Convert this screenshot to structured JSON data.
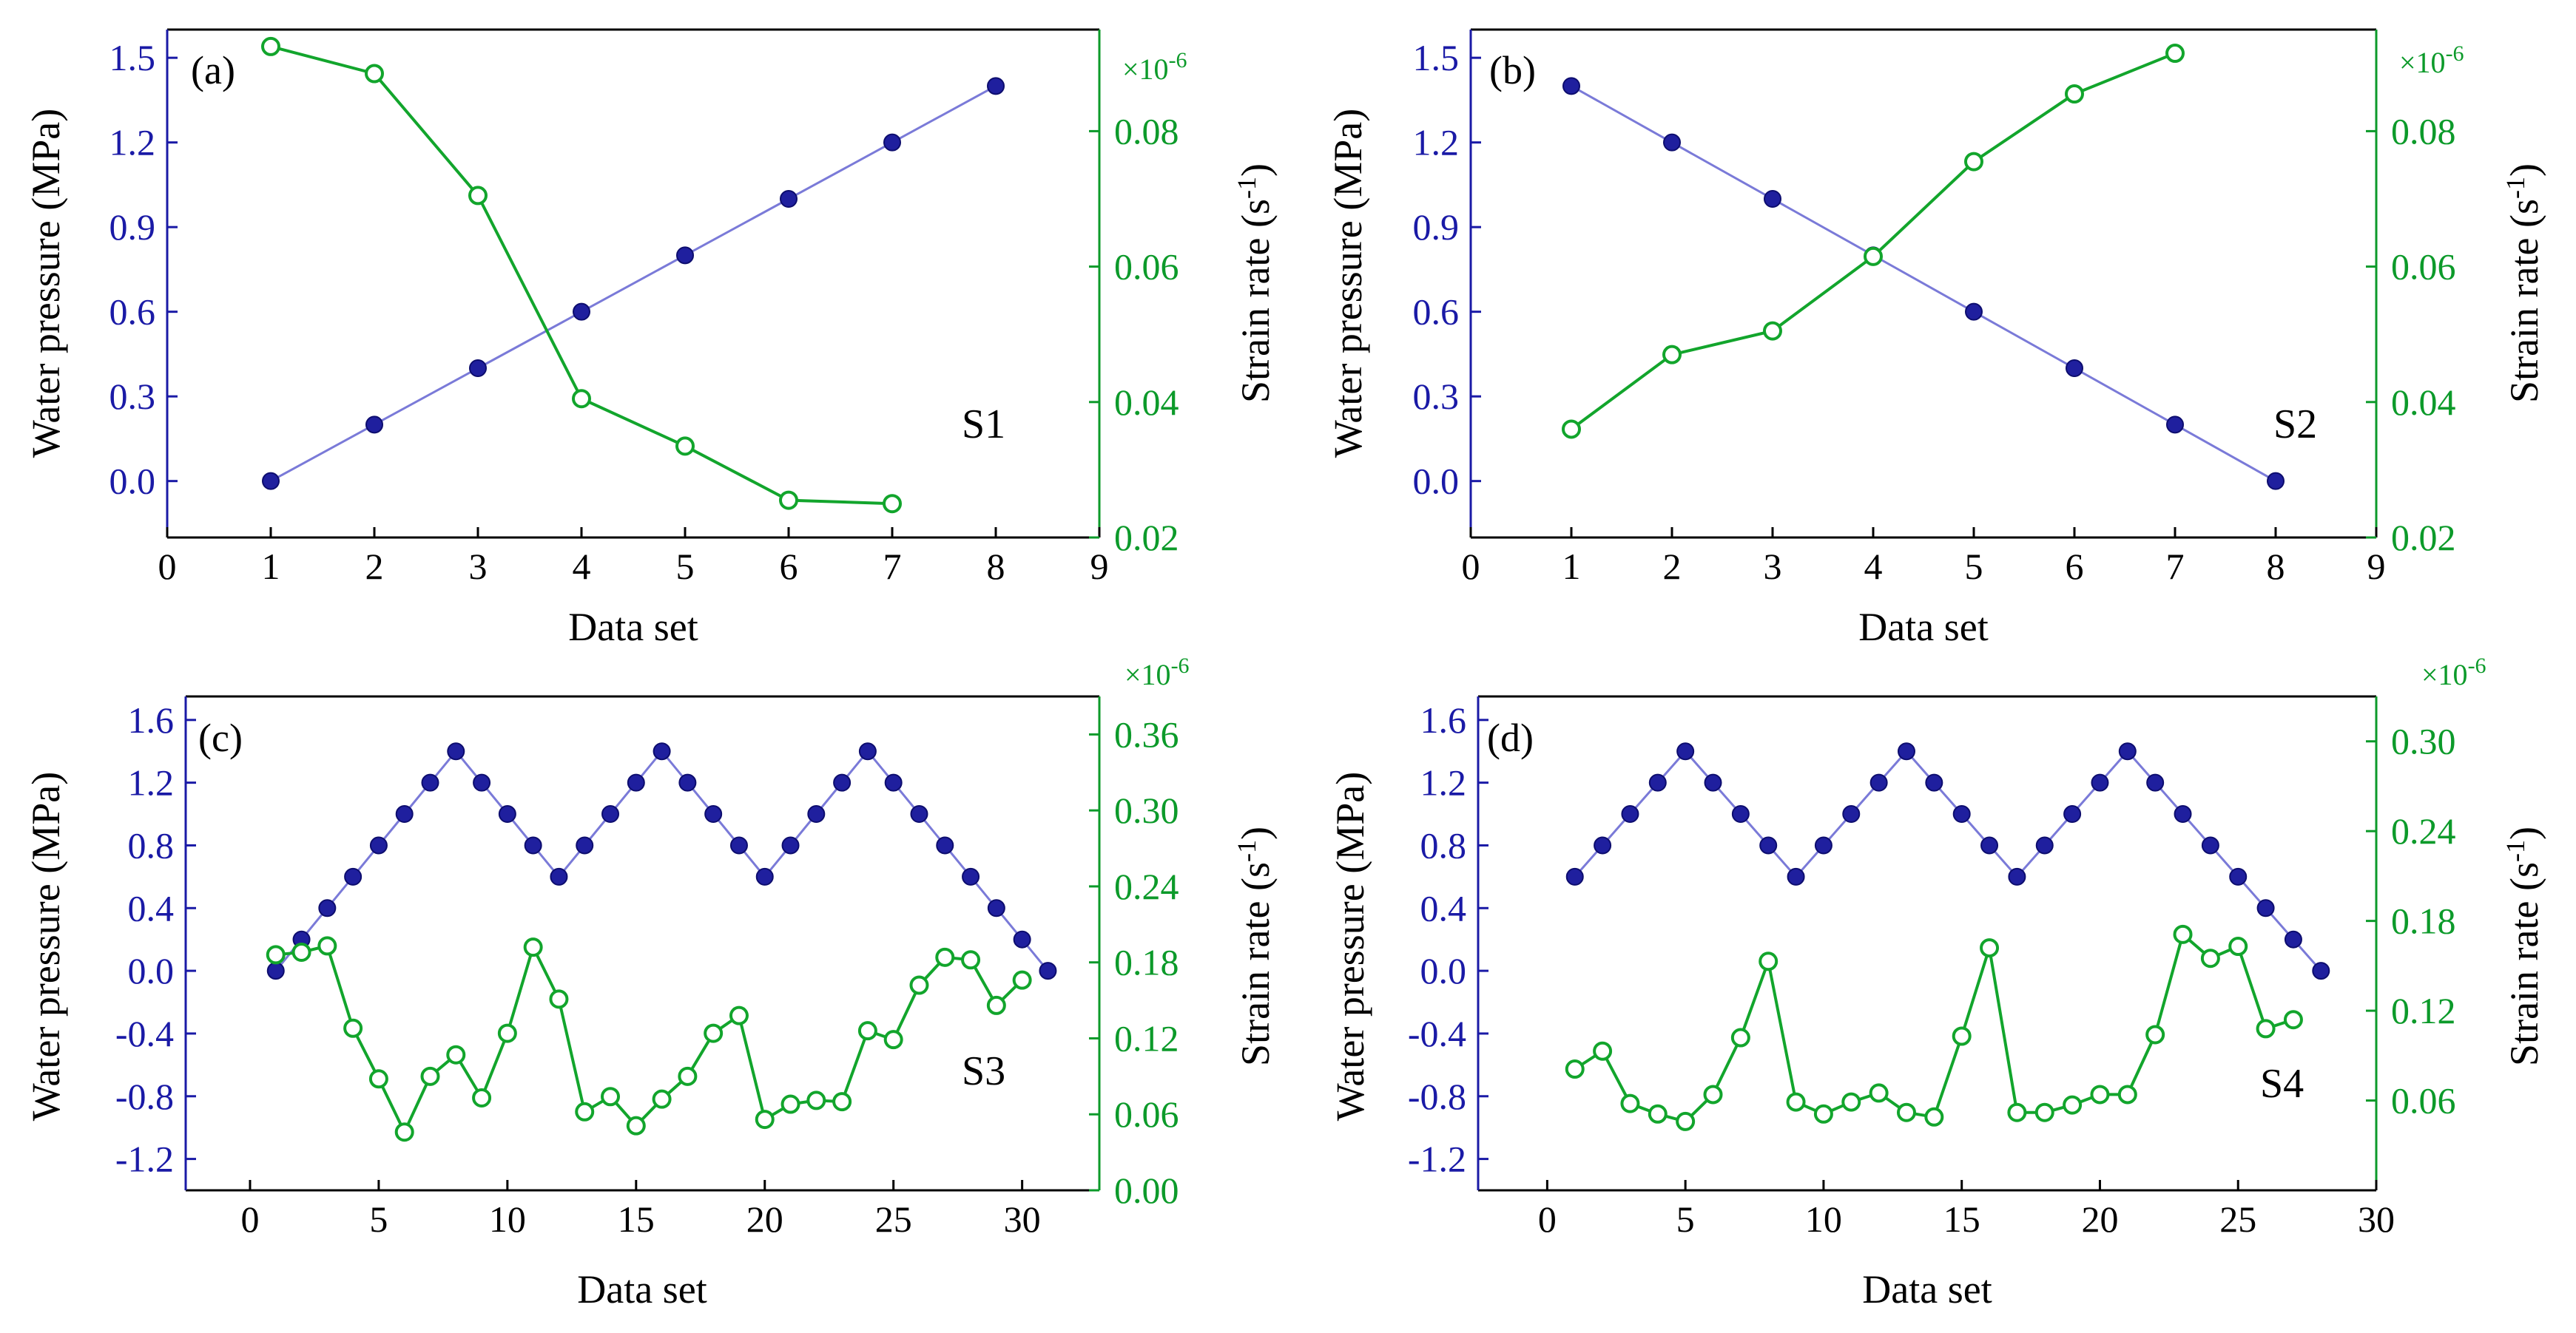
{
  "colors": {
    "left_axis": "#1a1aa6",
    "left_marker": "#1f1f9e",
    "left_line": "#7a7ad8",
    "right_axis": "#0c9a2a",
    "right_line": "#12a52c",
    "frame": "#000000"
  },
  "chart_data": [
    {
      "type": "line",
      "panel_label": "(a)",
      "annotation": "S1",
      "xlabel": "Data set",
      "ylabel_left": "Water pressure (MPa)",
      "ylabel_right_text": "Strain rate (s",
      "ylabel_right_exp": "-1",
      "ylabel_right_close": ")",
      "right_multiplier_text": "×10",
      "right_multiplier_exp": "-6",
      "xlim": [
        0,
        9
      ],
      "xticks": [
        0,
        1,
        2,
        3,
        4,
        5,
        6,
        7,
        8,
        9
      ],
      "xtick_labels": [
        "0",
        "1",
        "2",
        "3",
        "4",
        "5",
        "6",
        "7",
        "8",
        "9"
      ],
      "ylim_left": [
        -0.2,
        1.6
      ],
      "yticks_left": [
        0.0,
        0.3,
        0.6,
        0.9,
        1.2,
        1.5
      ],
      "ytick_labels_left": [
        "0.0",
        "0.3",
        "0.6",
        "0.9",
        "1.2",
        "1.5"
      ],
      "ylim_right": [
        0.02,
        0.095
      ],
      "yticks_right": [
        0.02,
        0.04,
        0.06,
        0.08
      ],
      "ytick_labels_right": [
        "0.02",
        "0.04",
        "0.06",
        "0.08"
      ],
      "series": [
        {
          "name": "Water pressure",
          "axis": "left",
          "marker": "filled",
          "x": [
            1,
            2,
            3,
            4,
            5,
            6,
            7,
            8
          ],
          "y": [
            0.0,
            0.2,
            0.4,
            0.6,
            0.8,
            1.0,
            1.2,
            1.4
          ]
        },
        {
          "name": "Strain rate",
          "axis": "right",
          "marker": "open",
          "x": [
            1,
            2,
            3,
            4,
            5,
            6,
            7
          ],
          "y": [
            0.0925,
            0.0885,
            0.0705,
            0.0405,
            0.0335,
            0.0255,
            0.025
          ]
        }
      ]
    },
    {
      "type": "line",
      "panel_label": "(b)",
      "annotation": "S2",
      "xlabel": "Data set",
      "ylabel_left": "Water pressure (MPa)",
      "ylabel_right_text": "Strain rate (s",
      "ylabel_right_exp": "-1",
      "ylabel_right_close": ")",
      "right_multiplier_text": "×10",
      "right_multiplier_exp": "-6",
      "xlim": [
        0,
        9
      ],
      "xticks": [
        0,
        1,
        2,
        3,
        4,
        5,
        6,
        7,
        8,
        9
      ],
      "xtick_labels": [
        "0",
        "1",
        "2",
        "3",
        "4",
        "5",
        "6",
        "7",
        "8",
        "9"
      ],
      "ylim_left": [
        -0.2,
        1.6
      ],
      "yticks_left": [
        0.0,
        0.3,
        0.6,
        0.9,
        1.2,
        1.5
      ],
      "ytick_labels_left": [
        "0.0",
        "0.3",
        "0.6",
        "0.9",
        "1.2",
        "1.5"
      ],
      "ylim_right": [
        0.02,
        0.095
      ],
      "yticks_right": [
        0.02,
        0.04,
        0.06,
        0.08
      ],
      "ytick_labels_right": [
        "0.02",
        "0.04",
        "0.06",
        "0.08"
      ],
      "series": [
        {
          "name": "Water pressure",
          "axis": "left",
          "marker": "filled",
          "x": [
            1,
            2,
            3,
            4,
            5,
            6,
            7,
            8
          ],
          "y": [
            1.4,
            1.2,
            1.0,
            0.8,
            0.6,
            0.4,
            0.2,
            0.0
          ]
        },
        {
          "name": "Strain rate",
          "axis": "right",
          "marker": "open",
          "x": [
            1,
            2,
            3,
            4,
            5,
            6,
            7
          ],
          "y": [
            0.036,
            0.047,
            0.0505,
            0.0615,
            0.0755,
            0.0855,
            0.0915
          ]
        }
      ]
    },
    {
      "type": "line",
      "panel_label": "(c)",
      "annotation": "S3",
      "xlabel": "Data set",
      "ylabel_left": "Water pressure (MPa)",
      "ylabel_right_text": "Strain rate (s",
      "ylabel_right_exp": "-1",
      "ylabel_right_close": ")",
      "right_multiplier_text": "×10",
      "right_multiplier_exp": "-6",
      "xlim": [
        -2.5,
        33
      ],
      "xticks": [
        0,
        5,
        10,
        15,
        20,
        25,
        30
      ],
      "xtick_labels": [
        "0",
        "5",
        "10",
        "15",
        "20",
        "25",
        "30"
      ],
      "ylim_left": [
        -1.4,
        1.75
      ],
      "yticks_left": [
        -1.2,
        -0.8,
        -0.4,
        0.0,
        0.4,
        0.8,
        1.2,
        1.6
      ],
      "ytick_labels_left": [
        "-1.2",
        "-0.8",
        "-0.4",
        "0.0",
        "0.4",
        "0.8",
        "1.2",
        "1.6"
      ],
      "ylim_right": [
        0.0,
        0.39
      ],
      "yticks_right": [
        0.0,
        0.06,
        0.12,
        0.18,
        0.24,
        0.3,
        0.36
      ],
      "ytick_labels_right": [
        "0.00",
        "0.06",
        "0.12",
        "0.18",
        "0.24",
        "0.30",
        "0.36"
      ],
      "series": [
        {
          "name": "Water pressure",
          "axis": "left",
          "marker": "filled",
          "x": [
            1,
            2,
            3,
            4,
            5,
            6,
            7,
            8,
            9,
            10,
            11,
            12,
            13,
            14,
            15,
            16,
            17,
            18,
            19,
            20,
            21,
            22,
            23,
            24,
            25,
            26,
            27,
            28,
            29,
            30,
            31
          ],
          "y": [
            0.0,
            0.2,
            0.4,
            0.6,
            0.8,
            1.0,
            1.2,
            1.4,
            1.2,
            1.0,
            0.8,
            0.6,
            0.8,
            1.0,
            1.2,
            1.4,
            1.2,
            1.0,
            0.8,
            0.6,
            0.8,
            1.0,
            1.2,
            1.4,
            1.2,
            1.0,
            0.8,
            0.6,
            0.4,
            0.2,
            0.0
          ]
        },
        {
          "name": "Strain rate",
          "axis": "right",
          "marker": "open",
          "x": [
            1,
            2,
            3,
            4,
            5,
            6,
            7,
            8,
            9,
            10,
            11,
            12,
            13,
            14,
            15,
            16,
            17,
            18,
            19,
            20,
            21,
            22,
            23,
            24,
            25,
            26,
            27,
            28,
            29,
            30
          ],
          "y": [
            0.186,
            0.188,
            0.193,
            0.128,
            0.088,
            0.046,
            0.09,
            0.107,
            0.073,
            0.124,
            0.192,
            0.151,
            0.062,
            0.074,
            0.051,
            0.072,
            0.09,
            0.124,
            0.138,
            0.056,
            0.068,
            0.071,
            0.07,
            0.126,
            0.119,
            0.162,
            0.184,
            0.182,
            0.146,
            0.166
          ]
        }
      ]
    },
    {
      "type": "line",
      "panel_label": "(d)",
      "annotation": "S4",
      "xlabel": "Data set",
      "ylabel_left": "Water pressure (MPa)",
      "ylabel_right_text": "Strain rate (s",
      "ylabel_right_exp": "-1",
      "ylabel_right_close": ")",
      "right_multiplier_text": "×10",
      "right_multiplier_exp": "-6",
      "xlim": [
        -2.5,
        30
      ],
      "xticks": [
        0,
        5,
        10,
        15,
        20,
        25,
        30
      ],
      "xtick_labels": [
        "0",
        "5",
        "10",
        "15",
        "20",
        "25",
        "30"
      ],
      "ylim_left": [
        -1.4,
        1.75
      ],
      "yticks_left": [
        -1.2,
        -0.8,
        -0.4,
        0.0,
        0.4,
        0.8,
        1.2,
        1.6
      ],
      "ytick_labels_left": [
        "-1.2",
        "-0.8",
        "-0.4",
        "0.0",
        "0.4",
        "0.8",
        "1.2",
        "1.6"
      ],
      "ylim_right": [
        0.0,
        0.33
      ],
      "yticks_right": [
        0.06,
        0.12,
        0.18,
        0.24,
        0.3
      ],
      "ytick_labels_right": [
        "0.06",
        "0.12",
        "0.18",
        "0.24",
        "0.30"
      ],
      "series": [
        {
          "name": "Water pressure",
          "axis": "left",
          "marker": "filled",
          "x": [
            1,
            2,
            3,
            4,
            5,
            6,
            7,
            8,
            9,
            10,
            11,
            12,
            13,
            14,
            15,
            16,
            17,
            18,
            19,
            20,
            21,
            22,
            23,
            24,
            25,
            26,
            27,
            28
          ],
          "y": [
            0.6,
            0.8,
            1.0,
            1.2,
            1.4,
            1.2,
            1.0,
            0.8,
            0.6,
            0.8,
            1.0,
            1.2,
            1.4,
            1.2,
            1.0,
            0.8,
            0.6,
            0.8,
            1.0,
            1.2,
            1.4,
            1.2,
            1.0,
            0.8,
            0.6,
            0.4,
            0.2,
            0.0
          ]
        },
        {
          "name": "Strain rate",
          "axis": "right",
          "marker": "open",
          "x": [
            1,
            2,
            3,
            4,
            5,
            6,
            7,
            8,
            9,
            10,
            11,
            12,
            13,
            14,
            15,
            16,
            17,
            18,
            19,
            20,
            21,
            22,
            23,
            24,
            25,
            26,
            27
          ],
          "y": [
            0.081,
            0.093,
            0.058,
            0.051,
            0.046,
            0.064,
            0.102,
            0.153,
            0.059,
            0.051,
            0.059,
            0.065,
            0.052,
            0.049,
            0.103,
            0.162,
            0.052,
            0.052,
            0.057,
            0.064,
            0.064,
            0.104,
            0.171,
            0.155,
            0.163,
            0.108,
            0.114
          ]
        }
      ]
    }
  ]
}
